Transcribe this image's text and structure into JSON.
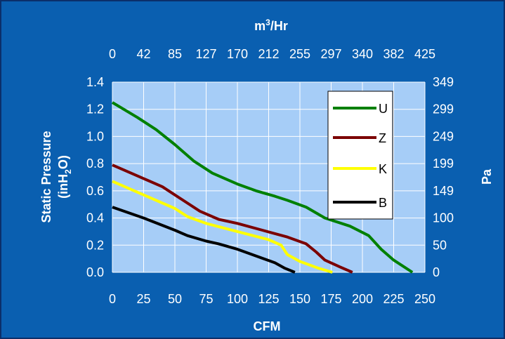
{
  "chart_data": {
    "type": "line",
    "x_axis_bottom": {
      "label": "CFM",
      "ticks": [
        "0",
        "25",
        "50",
        "75",
        "100",
        "125",
        "150",
        "175",
        "200",
        "225",
        "250"
      ],
      "range": [
        0,
        250
      ]
    },
    "x_axis_top": {
      "label_base": "m",
      "label_sup": "3",
      "label_rest": "/Hr",
      "ticks": [
        "0",
        "42",
        "85",
        "127",
        "170",
        "212",
        "255",
        "297",
        "340",
        "382",
        "425"
      ]
    },
    "y_axis_left": {
      "label_line1": "Static Pressure",
      "label_line2_prefix": "(inH",
      "label_line2_sub": "2",
      "label_line2_suffix": "O)",
      "ticks": [
        "0.0",
        "0.2",
        "0.4",
        "0.6",
        "0.8",
        "1.0",
        "1.2",
        "1.4"
      ],
      "range": [
        0,
        1.4
      ]
    },
    "y_axis_right": {
      "label": "Pa",
      "ticks": [
        "0",
        "50",
        "100",
        "149",
        "199",
        "249",
        "299",
        "349"
      ]
    },
    "grid": true,
    "legend_position": "top-right",
    "series": [
      {
        "name": "U",
        "color": "#008000",
        "points": [
          [
            0,
            1.25
          ],
          [
            20,
            1.14
          ],
          [
            35,
            1.05
          ],
          [
            50,
            0.94
          ],
          [
            65,
            0.82
          ],
          [
            80,
            0.73
          ],
          [
            100,
            0.65
          ],
          [
            115,
            0.6
          ],
          [
            130,
            0.56
          ],
          [
            140,
            0.53
          ],
          [
            155,
            0.48
          ],
          [
            170,
            0.4
          ],
          [
            190,
            0.34
          ],
          [
            205,
            0.27
          ],
          [
            215,
            0.17
          ],
          [
            225,
            0.09
          ],
          [
            240,
            0.0
          ]
        ]
      },
      {
        "name": "Z",
        "color": "#7b0000",
        "points": [
          [
            0,
            0.79
          ],
          [
            25,
            0.69
          ],
          [
            40,
            0.63
          ],
          [
            55,
            0.54
          ],
          [
            70,
            0.45
          ],
          [
            85,
            0.39
          ],
          [
            100,
            0.36
          ],
          [
            120,
            0.31
          ],
          [
            140,
            0.26
          ],
          [
            155,
            0.21
          ],
          [
            163,
            0.15
          ],
          [
            170,
            0.09
          ],
          [
            182,
            0.04
          ],
          [
            192,
            0.0
          ]
        ]
      },
      {
        "name": "K",
        "color": "#ffff00",
        "points": [
          [
            0,
            0.67
          ],
          [
            25,
            0.57
          ],
          [
            50,
            0.47
          ],
          [
            60,
            0.41
          ],
          [
            75,
            0.36
          ],
          [
            100,
            0.3
          ],
          [
            125,
            0.24
          ],
          [
            135,
            0.2
          ],
          [
            140,
            0.13
          ],
          [
            150,
            0.08
          ],
          [
            165,
            0.03
          ],
          [
            176,
            0.0
          ]
        ]
      },
      {
        "name": "B",
        "color": "#000000",
        "points": [
          [
            0,
            0.48
          ],
          [
            25,
            0.4
          ],
          [
            50,
            0.31
          ],
          [
            60,
            0.27
          ],
          [
            75,
            0.23
          ],
          [
            85,
            0.21
          ],
          [
            100,
            0.17
          ],
          [
            115,
            0.12
          ],
          [
            130,
            0.07
          ],
          [
            138,
            0.03
          ],
          [
            146,
            0.0
          ]
        ]
      }
    ]
  }
}
